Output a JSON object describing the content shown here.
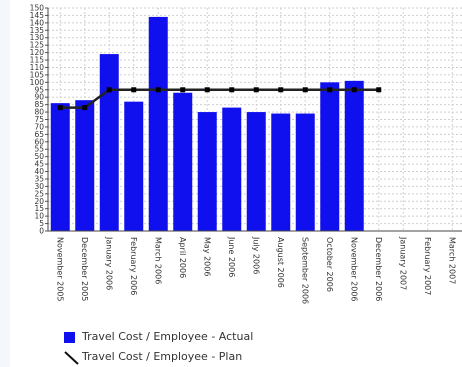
{
  "chart_data": {
    "type": "bar",
    "categories": [
      "November 2005",
      "December 2005",
      "January 2006",
      "February 2006",
      "March 2006",
      "April 2006",
      "May 2006",
      "June 2006",
      "July 2006",
      "August 2006",
      "September 2006",
      "October 2006",
      "November 2006",
      "December 2006",
      "January 2007",
      "February 2007",
      "March 2007"
    ],
    "series": [
      {
        "name": "Travel Cost / Employee - Actual",
        "type": "bar",
        "color": "#1010ee",
        "values": [
          86,
          88,
          119,
          87,
          144,
          93,
          80,
          83,
          80,
          79,
          79,
          100,
          101,
          null,
          null,
          null,
          null
        ]
      },
      {
        "name": "Travel Cost / Employee - Plan",
        "type": "line",
        "color": "#222222",
        "values": [
          83,
          83,
          95,
          95,
          95,
          95,
          95,
          95,
          95,
          95,
          95,
          95,
          95,
          95,
          null,
          null,
          null
        ]
      }
    ],
    "yticks": [
      0,
      5,
      10,
      15,
      20,
      25,
      30,
      35,
      40,
      45,
      50,
      55,
      60,
      65,
      70,
      75,
      80,
      85,
      90,
      95,
      100,
      105,
      110,
      115,
      120,
      125,
      130,
      135,
      140,
      145,
      150
    ],
    "ylim": [
      0,
      150
    ],
    "grid": true,
    "legend_position": "bottom"
  },
  "legend": {
    "actual_label": "Travel Cost / Employee - Actual",
    "plan_label": "Travel Cost / Employee - Plan"
  }
}
